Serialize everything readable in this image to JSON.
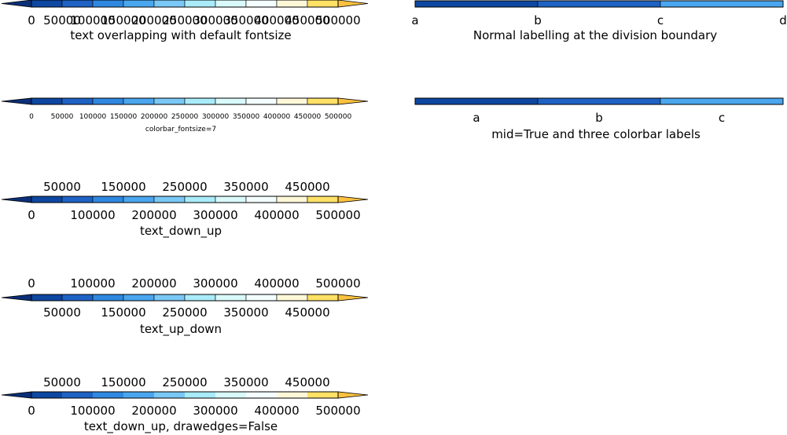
{
  "chart_data": [
    {
      "type": "colorbar",
      "name": "cb1",
      "title": "text overlapping with default fontsize",
      "label_mode": "all-below",
      "extend": "both",
      "drawedges": true,
      "fontsize": "large",
      "levels": [
        "0",
        "50000",
        "100000",
        "150000",
        "200000",
        "250000",
        "300000",
        "350000",
        "400000",
        "450000",
        "500000"
      ]
    },
    {
      "type": "colorbar",
      "name": "cb2",
      "title": "colorbar_fontsize=7",
      "label_mode": "all-below",
      "extend": "both",
      "drawedges": true,
      "fontsize": "small",
      "levels": [
        "0",
        "50000",
        "100000",
        "150000",
        "200000",
        "250000",
        "300000",
        "350000",
        "400000",
        "450000",
        "500000"
      ]
    },
    {
      "type": "colorbar",
      "name": "cb3",
      "title": "text_down_up",
      "label_mode": "down-up",
      "extend": "both",
      "drawedges": true,
      "fontsize": "large",
      "levels": [
        "0",
        "50000",
        "100000",
        "150000",
        "200000",
        "250000",
        "300000",
        "350000",
        "400000",
        "450000",
        "500000"
      ]
    },
    {
      "type": "colorbar",
      "name": "cb4",
      "title": "text_up_down",
      "label_mode": "up-down",
      "extend": "both",
      "drawedges": true,
      "fontsize": "large",
      "levels": [
        "0",
        "50000",
        "100000",
        "150000",
        "200000",
        "250000",
        "300000",
        "350000",
        "400000",
        "450000",
        "500000"
      ]
    },
    {
      "type": "colorbar",
      "name": "cb5",
      "title": "text_down_up, drawedges=False",
      "label_mode": "down-up",
      "extend": "both",
      "drawedges": false,
      "fontsize": "large",
      "levels": [
        "0",
        "50000",
        "100000",
        "150000",
        "200000",
        "250000",
        "300000",
        "350000",
        "400000",
        "450000",
        "500000"
      ]
    },
    {
      "type": "colorbar",
      "name": "cb6",
      "title": "Normal labelling at the division boundary",
      "label_mode": "boundary",
      "extend": "neither",
      "drawedges": true,
      "fontsize": "large",
      "levels": [
        "a",
        "b",
        "c",
        "d"
      ]
    },
    {
      "type": "colorbar",
      "name": "cb7",
      "title": "mid=True and three colorbar labels",
      "label_mode": "mid",
      "extend": "neither",
      "drawedges": true,
      "fontsize": "large",
      "levels": [
        "a",
        "b",
        "c"
      ]
    }
  ],
  "colors": {
    "ten": [
      "#0d47a1",
      "#1e62c4",
      "#2f88e0",
      "#4aa6ee",
      "#79c8f6",
      "#a9ebf9",
      "#d9f9fa",
      "#f4feff",
      "#fff8d8",
      "#ffe166"
    ],
    "under": "#0b2f78",
    "over": "#fdc13f",
    "three": [
      "#0d47a1",
      "#1e62c4",
      "#4aa6ee"
    ]
  }
}
